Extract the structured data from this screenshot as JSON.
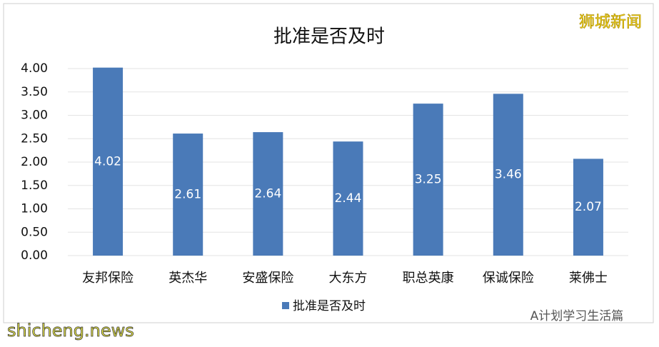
{
  "chart_data": {
    "type": "bar",
    "title": "批准是否及时",
    "categories": [
      "友邦保险",
      "英杰华",
      "安盛保险",
      "大东方",
      "职总英康",
      "保诚保险",
      "莱佛士"
    ],
    "series": [
      {
        "name": "批准是否及时",
        "color": "#4a7ab8",
        "values": [
          4.02,
          2.61,
          2.64,
          2.44,
          3.25,
          3.46,
          2.07
        ]
      }
    ],
    "ylim": [
      0,
      4
    ],
    "yticks": [
      {
        "value": 0,
        "label": "0.00"
      },
      {
        "value": 0.5,
        "label": "0.50"
      },
      {
        "value": 1,
        "label": "1.00"
      },
      {
        "value": 1.5,
        "label": "1.50"
      },
      {
        "value": 2,
        "label": "2.00"
      },
      {
        "value": 2.5,
        "label": "2.50"
      },
      {
        "value": 3,
        "label": "3.00"
      },
      {
        "value": 3.5,
        "label": "3.50"
      },
      {
        "value": 4,
        "label": "4.00"
      }
    ],
    "grid": true,
    "legend": "bottom",
    "annotations": [
      "狮城新闻",
      "A计划学习生活篇",
      "shicheng.news"
    ]
  }
}
